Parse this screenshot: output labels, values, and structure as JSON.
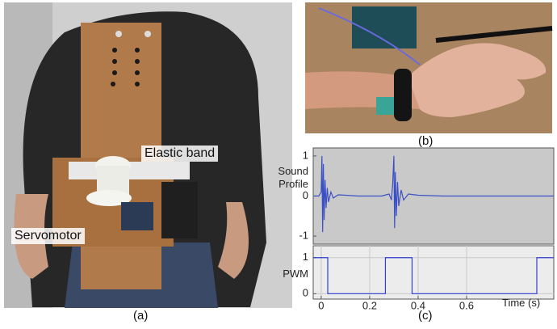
{
  "panels": {
    "a": {
      "caption": "(a)",
      "labels": [
        "Elastic band",
        "Servomotor"
      ]
    },
    "b": {
      "caption": "(b)"
    },
    "c": {
      "caption": "(c)"
    }
  },
  "chart_data": [
    {
      "type": "line",
      "ylabel": "Sound Profile",
      "xlim": [
        -0.033,
        0.96
      ],
      "ylim": [
        -1.2,
        1.2
      ],
      "yticks": [
        1,
        0,
        -1
      ],
      "grid": false,
      "x": [
        -0.03,
        -0.01,
        0,
        0.003,
        0.006,
        0.009,
        0.012,
        0.016,
        0.02,
        0.025,
        0.03,
        0.04,
        0.05,
        0.07,
        0.1,
        0.15,
        0.2,
        0.25,
        0.28,
        0.29,
        0.295,
        0.3,
        0.303,
        0.306,
        0.31,
        0.315,
        0.32,
        0.33,
        0.34,
        0.36,
        0.4,
        0.5,
        0.6,
        0.7,
        0.8,
        0.9,
        0.96
      ],
      "series": [
        {
          "color": "#3b4fc4",
          "values": [
            0,
            0,
            0.1,
            1,
            -0.9,
            0.8,
            -0.6,
            0.4,
            -0.3,
            0.2,
            -0.15,
            0.1,
            -0.05,
            0.03,
            0.02,
            0,
            0,
            0,
            0.05,
            -0.1,
            0.3,
            1,
            -0.8,
            0.6,
            -0.5,
            0.35,
            -0.25,
            0.15,
            -0.1,
            0.05,
            0.02,
            0,
            0,
            0,
            0,
            0,
            0
          ]
        }
      ]
    },
    {
      "type": "line",
      "ylabel": "PWM",
      "xlabel": "Time (s)",
      "xlim": [
        -0.033,
        0.96
      ],
      "ylim": [
        -0.15,
        1.33
      ],
      "xticks": [
        0,
        0.2,
        0.4,
        0.6
      ],
      "yticks": [
        1,
        0
      ],
      "grid": true,
      "x": [
        -0.033,
        0.027,
        0.027,
        0.265,
        0.265,
        0.375,
        0.375,
        0.89,
        0.89,
        0.96
      ],
      "series": [
        {
          "color": "#2f3fd0",
          "values": [
            1,
            1,
            0,
            0,
            1,
            1,
            0,
            0,
            1,
            1
          ]
        }
      ]
    }
  ]
}
